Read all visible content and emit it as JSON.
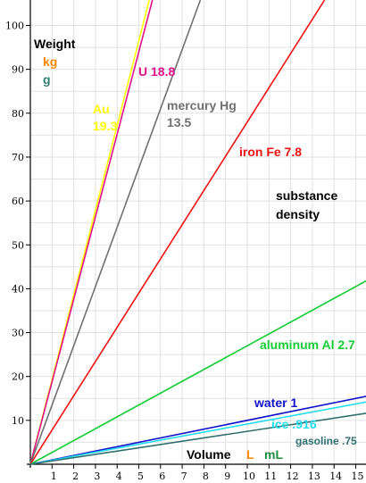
{
  "chart_data": {
    "type": "line",
    "title": "substance density",
    "title_lines": [
      "substance",
      "density"
    ],
    "ylabel": "Weight",
    "ylabel_units": [
      {
        "text": "kg",
        "color": "#ff8800"
      },
      {
        "text": "g",
        "color": "#2f7f6f"
      }
    ],
    "xlabel": "Volume",
    "xlabel_units": [
      {
        "text": "L",
        "color": "#ff8800"
      },
      {
        "text": "mL",
        "color": "#1f8f3f"
      }
    ],
    "xlim": [
      0,
      15.5
    ],
    "ylim": [
      0,
      100
    ],
    "x_ticks": [
      "1",
      "2",
      "3",
      "4",
      "5",
      "6",
      "7",
      "8",
      "9",
      "10",
      "11",
      "12",
      "13",
      "14",
      "15"
    ],
    "y_ticks": [
      "10",
      "20",
      "30",
      "40",
      "50",
      "60",
      "70",
      "80",
      "90",
      "100"
    ],
    "grid": true,
    "series": [
      {
        "name": "Au",
        "label_lines": [
          "Au",
          "19.3"
        ],
        "density": 19.3,
        "color": "#ffff00"
      },
      {
        "name": "U",
        "label_lines": [
          "U  18.8"
        ],
        "density": 18.8,
        "color": "#e0108a"
      },
      {
        "name": "mercury Hg",
        "label_lines": [
          "mercury Hg",
          "13.5"
        ],
        "density": 13.5,
        "color": "#707070"
      },
      {
        "name": "iron Fe",
        "label_lines": [
          "iron Fe  7.8"
        ],
        "density": 7.8,
        "color": "#ee1111"
      },
      {
        "name": "aluminum Al",
        "label_lines": [
          "aluminum Al 2.7"
        ],
        "density": 2.7,
        "color": "#11cc33"
      },
      {
        "name": "water",
        "label_lines": [
          "water  1"
        ],
        "density": 1,
        "color": "#1111cc"
      },
      {
        "name": "ice",
        "label_lines": [
          "ice  .916"
        ],
        "density": 0.916,
        "color": "#22ddee"
      },
      {
        "name": "gasoline",
        "label_lines": [
          "gasoline .75"
        ],
        "density": 0.75,
        "color": "#2f6f6f"
      }
    ]
  }
}
